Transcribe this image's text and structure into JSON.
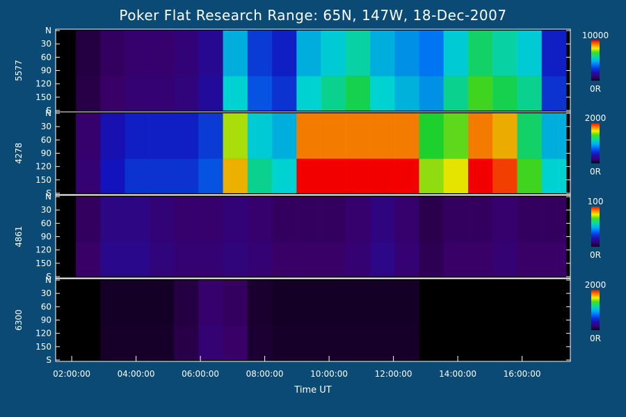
{
  "chart_data": {
    "type": "heatmap",
    "title": "Poker Flat Research Range: 65N, 147W, 18-Dec-2007",
    "xlabel": "Time UT",
    "x_ticks": [
      "02:00:00",
      "04:00:00",
      "06:00:00",
      "08:00:00",
      "10:00:00",
      "12:00:00",
      "14:00:00",
      "16:00:00"
    ],
    "xlim": [
      "01:30:00",
      "17:30:00"
    ],
    "y_ticks": [
      "N",
      "30",
      "60",
      "90",
      "120",
      "150",
      "S"
    ],
    "ylim": [
      0,
      180
    ],
    "colorbar_min_label": "0R",
    "panels": [
      {
        "name": "5577",
        "colorbar_max": "10000",
        "intensity": [
          0.05,
          0.08,
          0.1,
          0.1,
          0.12,
          0.18,
          0.55,
          0.35,
          0.3,
          0.55,
          0.6,
          0.65,
          0.55,
          0.5,
          0.45,
          0.6,
          0.7,
          0.65,
          0.6,
          0.3
        ]
      },
      {
        "name": "4278",
        "colorbar_max": "2000",
        "intensity": [
          0.1,
          0.25,
          0.3,
          0.3,
          0.3,
          0.35,
          0.85,
          0.6,
          0.55,
          1.0,
          1.0,
          1.0,
          1.0,
          1.0,
          0.75,
          0.8,
          1.0,
          0.95,
          0.7,
          0.55
        ]
      },
      {
        "name": "4861",
        "colorbar_max": "100",
        "intensity": [
          0.08,
          0.15,
          0.15,
          0.12,
          0.1,
          0.1,
          0.12,
          0.1,
          0.08,
          0.08,
          0.08,
          0.1,
          0.14,
          0.1,
          0.06,
          0.08,
          0.08,
          0.1,
          0.08,
          0.08
        ]
      },
      {
        "name": "6300",
        "colorbar_max": "2000",
        "intensity": [
          0.0,
          0.02,
          0.02,
          0.02,
          0.05,
          0.1,
          0.08,
          0.03,
          0.02,
          0.02,
          0.02,
          0.02,
          0.02,
          0.02,
          0.0,
          0.0,
          0.0,
          0.0,
          0.0,
          0.0
        ]
      }
    ]
  }
}
